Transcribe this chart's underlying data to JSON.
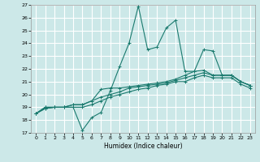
{
  "title": "",
  "xlabel": "Humidex (Indice chaleur)",
  "ylabel": "",
  "xlim": [
    -0.5,
    23.5
  ],
  "ylim": [
    17,
    27
  ],
  "xticks": [
    0,
    1,
    2,
    3,
    4,
    5,
    6,
    7,
    8,
    9,
    10,
    11,
    12,
    13,
    14,
    15,
    16,
    17,
    18,
    19,
    20,
    21,
    22,
    23
  ],
  "yticks": [
    17,
    18,
    19,
    20,
    21,
    22,
    23,
    24,
    25,
    26,
    27
  ],
  "bg_color": "#cce8e8",
  "grid_color": "#ffffff",
  "line_color": "#1a7a6e",
  "line1_y": [
    18.5,
    19.0,
    19.0,
    19.0,
    19.0,
    17.2,
    18.2,
    18.6,
    20.3,
    22.2,
    24.0,
    26.9,
    23.5,
    23.7,
    25.2,
    25.8,
    21.8,
    21.8,
    23.5,
    23.4,
    21.5,
    21.5,
    21.0,
    20.7
  ],
  "line2_y": [
    18.5,
    19.0,
    19.0,
    19.0,
    19.2,
    19.2,
    19.5,
    20.4,
    20.5,
    20.5,
    20.6,
    20.7,
    20.8,
    20.9,
    21.0,
    21.2,
    21.5,
    21.8,
    21.9,
    21.5,
    21.5,
    21.5,
    21.0,
    20.7
  ],
  "line3_y": [
    18.5,
    18.9,
    19.0,
    19.0,
    19.2,
    19.2,
    19.5,
    19.8,
    20.0,
    20.2,
    20.5,
    20.6,
    20.7,
    20.8,
    20.9,
    21.1,
    21.3,
    21.5,
    21.7,
    21.5,
    21.5,
    21.5,
    21.0,
    20.7
  ],
  "line4_y": [
    18.5,
    18.9,
    19.0,
    19.0,
    19.0,
    19.0,
    19.2,
    19.5,
    19.8,
    20.0,
    20.2,
    20.4,
    20.5,
    20.7,
    20.8,
    21.0,
    21.0,
    21.3,
    21.5,
    21.3,
    21.3,
    21.3,
    20.8,
    20.5
  ]
}
